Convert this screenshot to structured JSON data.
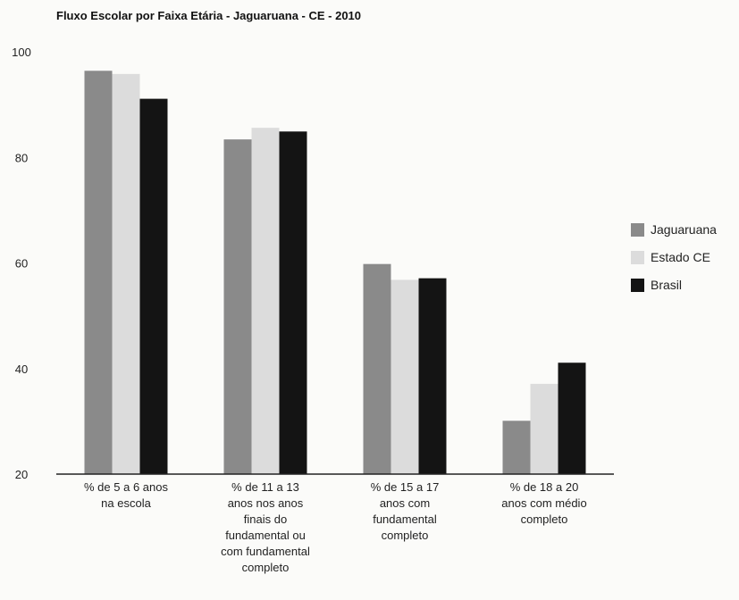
{
  "chart_data": {
    "type": "bar",
    "title": "Fluxo Escolar por Faixa Etária - Jaguaruana - CE - 2010",
    "xlabel": "",
    "ylabel": "",
    "ylim": [
      20,
      100
    ],
    "yticks": [
      20,
      40,
      60,
      80,
      100
    ],
    "grid": false,
    "legend_position": "right",
    "categories": [
      [
        "% de 5 a 6 anos",
        "na escola"
      ],
      [
        "% de 11 a 13",
        "anos nos anos",
        "finais do",
        "fundamental ou",
        "com fundamental",
        "completo"
      ],
      [
        "% de 15 a 17",
        "anos com",
        "fundamental",
        "completo"
      ],
      [
        "% de 18 a 20",
        "anos com médio",
        "completo"
      ]
    ],
    "series": [
      {
        "name": "Jaguaruana",
        "color": "#8a8a8a",
        "values": [
          96.4,
          83.4,
          59.8,
          30.1
        ]
      },
      {
        "name": "Estado  CE",
        "color": "#dcdcdc",
        "values": [
          95.8,
          85.6,
          56.8,
          37.1
        ]
      },
      {
        "name": "Brasil",
        "color": "#141414",
        "values": [
          91.1,
          84.9,
          57.1,
          41.1
        ]
      }
    ]
  }
}
